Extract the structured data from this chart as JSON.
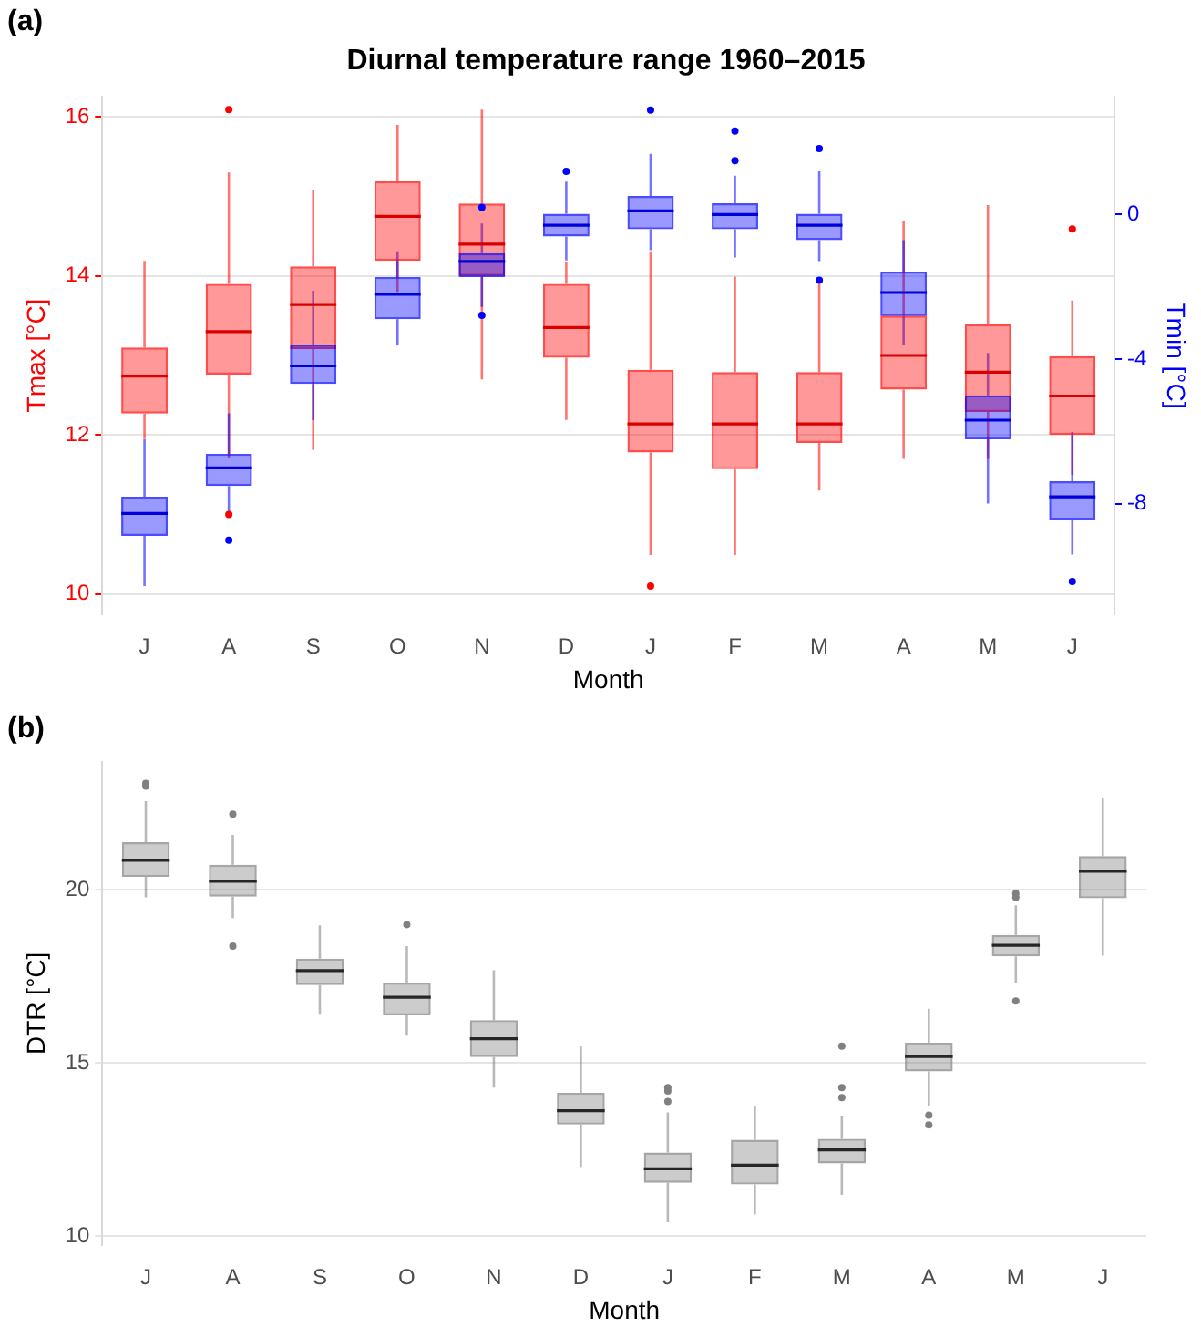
{
  "chart_data": [
    {
      "type": "box",
      "title": "Diurnal temperature range 1960–2015",
      "annotations": [
        "(a)"
      ],
      "xlabel": "Month",
      "ylabel": "Tmax [°C]",
      "y2label": "Tmin [°C]",
      "categories": [
        "J",
        "A",
        "S",
        "O",
        "N",
        "D",
        "J",
        "F",
        "M",
        "A",
        "M",
        "J"
      ],
      "ylim": [
        9.75,
        16.25
      ],
      "yticks": [
        10,
        12,
        14,
        16
      ],
      "y2lim": [
        -11.05,
        3.25
      ],
      "y2ticks": [
        0,
        -4,
        -8
      ],
      "grid": "y",
      "series": [
        {
          "color": "#ff0000",
          "boxes": [
            {
              "low": 11.95,
              "q1": 12.27,
              "median": 12.74,
              "q3": 13.1,
              "high": 14.19
            },
            {
              "low": 11.71,
              "q1": 12.76,
              "median": 13.3,
              "q3": 13.9,
              "high": 15.3,
              "outliers": [
                16.09,
                11.0
              ]
            },
            {
              "low": 11.81,
              "q1": 13.08,
              "median": 13.64,
              "q3": 14.12,
              "high": 15.08
            },
            {
              "low": 13.8,
              "q1": 14.19,
              "median": 14.75,
              "q3": 15.19,
              "high": 15.9
            },
            {
              "low": 12.7,
              "q1": 14.0,
              "median": 14.4,
              "q3": 14.91,
              "high": 16.09
            },
            {
              "low": 12.19,
              "q1": 12.97,
              "median": 13.35,
              "q3": 13.9,
              "high": 14.18
            },
            {
              "low": 10.49,
              "q1": 11.78,
              "median": 12.14,
              "q3": 12.82,
              "high": 14.31,
              "outliers": [
                10.1
              ]
            },
            {
              "low": 10.49,
              "q1": 11.57,
              "median": 12.14,
              "q3": 12.79,
              "high": 13.99
            },
            {
              "low": 11.3,
              "q1": 11.9,
              "median": 12.14,
              "q3": 12.79,
              "high": 13.9
            },
            {
              "low": 11.7,
              "q1": 12.57,
              "median": 13.0,
              "q3": 13.5,
              "high": 14.69
            },
            {
              "low": 11.7,
              "q1": 12.29,
              "median": 12.79,
              "q3": 13.39,
              "high": 14.89
            },
            {
              "low": 11.5,
              "q1": 12.0,
              "median": 12.49,
              "q3": 12.99,
              "high": 13.69,
              "outliers": [
                14.59
              ]
            }
          ]
        },
        {
          "color": "#0000ff",
          "axis": "y2",
          "boxes": [
            {
              "low": -10.28,
              "q1": -8.89,
              "median": -8.27,
              "q3": -7.81,
              "high": -6.22
            },
            {
              "low": -8.33,
              "q1": -7.51,
              "median": -7.01,
              "q3": -6.62,
              "high": -5.5,
              "outliers": [
                -9.01
              ]
            },
            {
              "low": -5.69,
              "q1": -4.69,
              "median": -4.19,
              "q3": -3.6,
              "high": -2.11
            },
            {
              "low": -3.6,
              "q1": -2.9,
              "median": -2.21,
              "q3": -1.73,
              "high": -1.02
            },
            {
              "low": -2.56,
              "q1": -1.73,
              "median": -1.3,
              "q3": -1.07,
              "high": -0.25,
              "outliers": [
                0.2,
                -2.79
              ]
            },
            {
              "low": -1.27,
              "q1": -0.61,
              "median": -0.3,
              "q3": 0.02,
              "high": 0.91,
              "outliers": [
                1.19
              ]
            },
            {
              "low": -0.99,
              "q1": -0.41,
              "median": 0.1,
              "q3": 0.51,
              "high": 1.68,
              "outliers": [
                2.89
              ]
            },
            {
              "low": -1.19,
              "q1": -0.41,
              "median": 0.0,
              "q3": 0.31,
              "high": 1.07,
              "outliers": [
                2.31,
                1.49
              ]
            },
            {
              "low": -1.29,
              "q1": -0.71,
              "median": -0.3,
              "q3": 0.02,
              "high": 1.19,
              "outliers": [
                1.82,
                -1.82
              ]
            },
            {
              "low": -3.6,
              "q1": -2.81,
              "median": -2.16,
              "q3": -1.58,
              "high": -0.71
            },
            {
              "low": -8.0,
              "q1": -6.22,
              "median": -5.69,
              "q3": -5.0,
              "high": -3.83
            },
            {
              "low": -9.41,
              "q1": -8.45,
              "median": -7.81,
              "q3": -7.38,
              "high": -6.02,
              "outliers": [
                -10.15
              ]
            }
          ]
        }
      ]
    },
    {
      "type": "box",
      "annotations": [
        "(b)"
      ],
      "xlabel": "Month",
      "ylabel": "DTR [°C]",
      "categories": [
        "J",
        "A",
        "S",
        "O",
        "N",
        "D",
        "J",
        "F",
        "M",
        "A",
        "M",
        "J"
      ],
      "ylim": [
        9.75,
        23.7
      ],
      "yticks": [
        10,
        15,
        20
      ],
      "grid": "y",
      "color": "#808080",
      "boxes": [
        {
          "low": 19.79,
          "q1": 20.38,
          "median": 20.86,
          "q3": 21.38,
          "high": 22.57,
          "outliers": [
            23.08,
            23.0
          ]
        },
        {
          "low": 19.19,
          "q1": 19.81,
          "median": 20.25,
          "q3": 20.73,
          "high": 21.59,
          "outliers": [
            22.19,
            18.38
          ]
        },
        {
          "low": 16.4,
          "q1": 17.25,
          "median": 17.67,
          "q3": 18.02,
          "high": 18.98
        },
        {
          "low": 15.79,
          "q1": 16.38,
          "median": 16.9,
          "q3": 17.32,
          "high": 18.38,
          "outliers": [
            19.0
          ]
        },
        {
          "low": 14.29,
          "q1": 15.17,
          "median": 15.7,
          "q3": 16.24,
          "high": 17.68
        },
        {
          "low": 12.0,
          "q1": 13.22,
          "median": 13.62,
          "q3": 14.14,
          "high": 15.48
        },
        {
          "low": 10.4,
          "q1": 11.54,
          "median": 11.94,
          "q3": 12.41,
          "high": 13.57,
          "outliers": [
            14.29,
            14.19,
            13.89
          ]
        },
        {
          "low": 10.62,
          "q1": 11.49,
          "median": 12.05,
          "q3": 12.78,
          "high": 13.76
        },
        {
          "low": 11.19,
          "q1": 12.1,
          "median": 12.49,
          "q3": 12.81,
          "high": 13.48,
          "outliers": [
            15.49,
            14.29,
            14.0
          ]
        },
        {
          "low": 13.76,
          "q1": 14.76,
          "median": 15.19,
          "q3": 15.59,
          "high": 16.57,
          "outliers": [
            13.49,
            13.21
          ]
        },
        {
          "low": 17.3,
          "q1": 18.08,
          "median": 18.4,
          "q3": 18.7,
          "high": 19.56,
          "outliers": [
            19.9,
            19.79,
            16.79
          ]
        },
        {
          "low": 18.1,
          "q1": 19.76,
          "median": 20.54,
          "q3": 20.98,
          "high": 22.67
        }
      ]
    }
  ]
}
